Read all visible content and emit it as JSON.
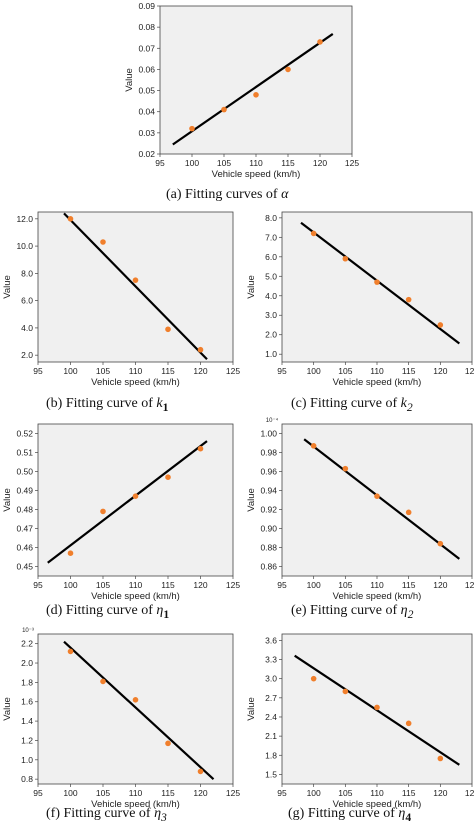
{
  "colors": {
    "plot_bg": "#f0f0f0",
    "point": "#f07f2c",
    "line": "#000000",
    "frame": "#444444"
  },
  "chart_data": [
    {
      "id": "alpha",
      "type": "scatter",
      "caption_prefix": "(a) Fitting curves of ",
      "caption_symbol": "α",
      "caption_sub": "",
      "xlabel": "Vehicle speed (km/h)",
      "ylabel": "Value",
      "multiplier": "",
      "xlim": [
        95,
        125
      ],
      "ylim": [
        0.02,
        0.09
      ],
      "xticks": [
        95,
        100,
        105,
        110,
        115,
        120,
        125
      ],
      "yticks": [
        0.02,
        0.03,
        0.04,
        0.05,
        0.06,
        0.07,
        0.08,
        0.09
      ],
      "ytick_labels": [
        "0.02",
        "0.03",
        "0.04",
        "0.05",
        "0.06",
        "0.07",
        "0.08",
        "0.09"
      ],
      "points": {
        "x": [
          100,
          105,
          110,
          115,
          120
        ],
        "y": [
          0.032,
          0.041,
          0.048,
          0.06,
          0.073
        ]
      },
      "fit_line": {
        "x": [
          97,
          122
        ],
        "y": [
          0.0245,
          0.0768
        ]
      }
    },
    {
      "id": "k1",
      "type": "scatter",
      "caption_prefix": "(b) Fitting curve of ",
      "caption_symbol": "k",
      "caption_sub": "1",
      "xlabel": "Vehicle speed (km/h)",
      "ylabel": "Value",
      "multiplier": "",
      "xlim": [
        95,
        125
      ],
      "ylim": [
        1.5,
        12.5
      ],
      "xticks": [
        95,
        100,
        105,
        110,
        115,
        120,
        125
      ],
      "yticks": [
        2,
        4,
        6,
        8,
        10,
        12
      ],
      "ytick_labels": [
        "2.0",
        "4.0",
        "6.0",
        "8.0",
        "10.0",
        "12.0"
      ],
      "points": {
        "x": [
          100,
          105,
          110,
          115,
          120
        ],
        "y": [
          12.0,
          10.3,
          7.5,
          3.9,
          2.4
        ]
      },
      "fit_line": {
        "x": [
          99,
          121
        ],
        "y": [
          12.4,
          1.7
        ]
      }
    },
    {
      "id": "k2",
      "type": "scatter",
      "caption_prefix": "(c) Fitting curve of ",
      "caption_symbol": "k",
      "caption_sub": "2",
      "xlabel": "Vehicle speed (km/h)",
      "ylabel": "Value",
      "multiplier": "",
      "xlim": [
        95,
        125
      ],
      "ylim": [
        0.6,
        8.3
      ],
      "xticks": [
        95,
        100,
        105,
        110,
        115,
        120,
        125
      ],
      "yticks": [
        1,
        2,
        3,
        4,
        5,
        6,
        7,
        8
      ],
      "ytick_labels": [
        "1.0",
        "2.0",
        "3.0",
        "4.0",
        "5.0",
        "6.0",
        "7.0",
        "8.0"
      ],
      "points": {
        "x": [
          100,
          105,
          110,
          115,
          120
        ],
        "y": [
          7.2,
          5.9,
          4.7,
          3.8,
          2.5
        ]
      },
      "fit_line": {
        "x": [
          98,
          123
        ],
        "y": [
          7.75,
          1.55
        ]
      }
    },
    {
      "id": "eta1",
      "type": "scatter",
      "caption_prefix": "(d) Fitting curve of ",
      "caption_symbol": "η",
      "caption_sub": "1",
      "xlabel": "Vehicle speed (km/h)",
      "ylabel": "Value",
      "multiplier": "",
      "xlim": [
        95,
        125
      ],
      "ylim": [
        0.445,
        0.525
      ],
      "xticks": [
        95,
        100,
        105,
        110,
        115,
        120,
        125
      ],
      "yticks": [
        0.45,
        0.46,
        0.47,
        0.48,
        0.49,
        0.5,
        0.51,
        0.52
      ],
      "ytick_labels": [
        "0.45",
        "0.46",
        "0.47",
        "0.48",
        "0.49",
        "0.50",
        "0.51",
        "0.52"
      ],
      "points": {
        "x": [
          100,
          105,
          110,
          115,
          120
        ],
        "y": [
          0.457,
          0.479,
          0.487,
          0.497,
          0.512
        ]
      },
      "fit_line": {
        "x": [
          96.5,
          121
        ],
        "y": [
          0.452,
          0.516
        ]
      }
    },
    {
      "id": "eta2",
      "type": "scatter",
      "caption_prefix": "(e) Fitting curve of ",
      "caption_symbol": "η",
      "caption_sub": "2",
      "xlabel": "Vehicle speed (km/h)",
      "ylabel": "Value",
      "multiplier": "10⁻⁴",
      "xlim": [
        95,
        125
      ],
      "ylim": [
        0.85,
        1.01
      ],
      "xticks": [
        95,
        100,
        105,
        110,
        115,
        120,
        125
      ],
      "yticks": [
        0.86,
        0.88,
        0.9,
        0.92,
        0.94,
        0.96,
        0.98,
        1.0
      ],
      "ytick_labels": [
        "0.86",
        "0.88",
        "0.90",
        "0.92",
        "0.94",
        "0.96",
        "0.98",
        "1.00"
      ],
      "points": {
        "x": [
          100,
          105,
          110,
          115,
          120
        ],
        "y": [
          0.987,
          0.963,
          0.934,
          0.917,
          0.884
        ]
      },
      "fit_line": {
        "x": [
          98.5,
          123
        ],
        "y": [
          0.994,
          0.868
        ]
      }
    },
    {
      "id": "eta3",
      "type": "scatter",
      "caption_prefix": "(f) Fitting curve of ",
      "caption_symbol": "η",
      "caption_sub": "3",
      "xlabel": "Vehicle speed (km/h)",
      "ylabel": "Value",
      "multiplier": "10⁻³",
      "xlim": [
        95,
        125
      ],
      "ylim": [
        0.75,
        2.3
      ],
      "xticks": [
        95,
        100,
        105,
        110,
        115,
        120,
        125
      ],
      "yticks": [
        0.8,
        1.0,
        1.2,
        1.4,
        1.6,
        1.8,
        2.0,
        2.2
      ],
      "ytick_labels": [
        "0.8",
        "1.0",
        "1.2",
        "1.4",
        "1.6",
        "1.8",
        "2.0",
        "2.2"
      ],
      "points": {
        "x": [
          100,
          105,
          110,
          115,
          120
        ],
        "y": [
          2.12,
          1.81,
          1.62,
          1.17,
          0.88
        ]
      },
      "fit_line": {
        "x": [
          99,
          122
        ],
        "y": [
          2.22,
          0.8
        ]
      }
    },
    {
      "id": "eta4",
      "type": "scatter",
      "caption_prefix": "(g) Fitting curve of ",
      "caption_symbol": "η",
      "caption_sub": "4",
      "xlabel": "Vehicle speed (km/h)",
      "ylabel": "Value",
      "multiplier": "",
      "xlim": [
        95,
        125
      ],
      "ylim": [
        1.35,
        3.7
      ],
      "xticks": [
        95,
        100,
        105,
        110,
        115,
        120,
        125
      ],
      "yticks": [
        1.5,
        1.8,
        2.1,
        2.4,
        2.7,
        3.0,
        3.3,
        3.6
      ],
      "ytick_labels": [
        "1.5",
        "1.8",
        "2.1",
        "2.4",
        "2.7",
        "3.0",
        "3.3",
        "3.6"
      ],
      "points": {
        "x": [
          100,
          105,
          110,
          115,
          120
        ],
        "y": [
          3.0,
          2.8,
          2.55,
          2.3,
          1.75
        ]
      },
      "fit_line": {
        "x": [
          97,
          123
        ],
        "y": [
          3.36,
          1.65
        ]
      }
    }
  ]
}
